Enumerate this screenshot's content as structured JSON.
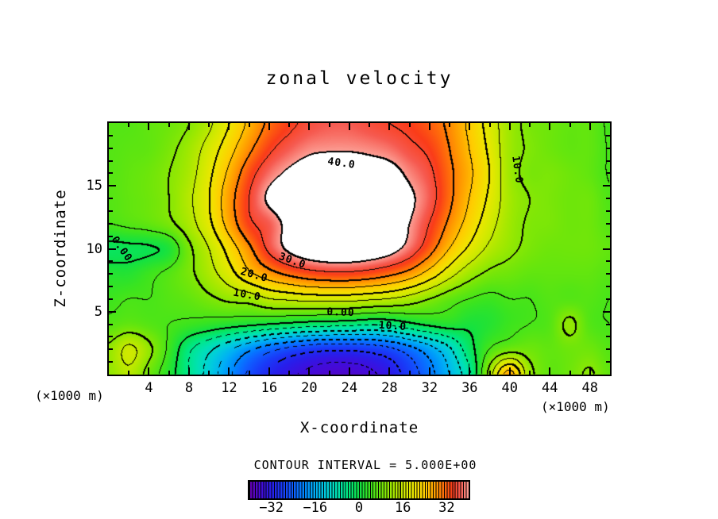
{
  "chart_data": {
    "type": "filled_contour",
    "title": "zonal velocity",
    "xlabel": "X-coordinate",
    "ylabel": "Z-coordinate",
    "unit_note_left": "(×1000 m)",
    "unit_note_right": "(×1000 m)",
    "contour_interval_label": "CONTOUR INTERVAL =  5.000E+00",
    "contour_interval": 5,
    "negative_contour_style": "dashed",
    "thick_contour_multiple": 10,
    "x_range": [
      0,
      50
    ],
    "z_range": [
      0,
      20
    ],
    "x_major_ticks": [
      4,
      8,
      12,
      16,
      20,
      24,
      28,
      32,
      36,
      40,
      44,
      48
    ],
    "x_minor_step": 2,
    "z_major_ticks": [
      5,
      10,
      15
    ],
    "z_minor_step": 1,
    "white_above": 40,
    "colorbar": {
      "range": [
        -40,
        40
      ],
      "tick_values": [
        -32,
        -16,
        0,
        16,
        32
      ],
      "tick_labels": [
        "−32",
        "−16",
        "0",
        "16",
        "32"
      ],
      "segments": 80
    },
    "colormap": [
      [
        -40,
        100,
        0,
        170
      ],
      [
        -36,
        70,
        10,
        215
      ],
      [
        -32,
        40,
        30,
        235
      ],
      [
        -28,
        25,
        60,
        248
      ],
      [
        -24,
        15,
        95,
        255
      ],
      [
        -20,
        0,
        135,
        255
      ],
      [
        -16,
        0,
        175,
        245
      ],
      [
        -12,
        0,
        205,
        220
      ],
      [
        -8,
        0,
        225,
        180
      ],
      [
        -4,
        0,
        232,
        130
      ],
      [
        0,
        15,
        225,
        70
      ],
      [
        4,
        60,
        228,
        30
      ],
      [
        8,
        110,
        230,
        10
      ],
      [
        12,
        160,
        232,
        0
      ],
      [
        16,
        205,
        233,
        0
      ],
      [
        20,
        238,
        232,
        0
      ],
      [
        24,
        255,
        205,
        0
      ],
      [
        28,
        255,
        155,
        0
      ],
      [
        31,
        255,
        110,
        10
      ],
      [
        34,
        250,
        60,
        25
      ],
      [
        37,
        246,
        90,
        80
      ],
      [
        40,
        252,
        160,
        150
      ]
    ],
    "grid": {
      "x_start": 0,
      "x_step": 2,
      "z_top": 20,
      "z_step": -2,
      "values": [
        [
          6,
          6,
          7,
          8,
          10,
          14,
          20,
          26,
          31,
          34,
          36,
          37,
          37,
          36,
          35,
          34,
          32,
          29,
          24,
          18,
          12,
          9,
          8,
          7,
          7,
          4.5
        ],
        [
          6,
          6.5,
          7,
          9,
          12,
          17,
          23,
          29,
          34,
          37,
          39,
          39.5,
          39.5,
          39,
          38,
          36,
          34,
          30,
          25,
          19,
          12,
          9.5,
          8,
          7,
          7,
          4.8
        ],
        [
          6,
          7,
          8,
          10,
          13,
          19,
          26,
          33,
          38,
          41,
          43,
          44,
          44,
          43,
          42,
          39,
          36,
          31,
          26,
          20,
          12,
          9,
          9,
          8,
          7,
          4.8
        ],
        [
          6,
          7,
          8,
          10,
          14,
          20,
          28,
          35,
          41,
          44,
          46,
          47,
          46,
          46,
          44,
          41,
          37,
          31,
          25,
          19,
          12.5,
          10,
          9,
          8,
          8,
          5.5
        ],
        [
          5,
          6,
          7,
          9,
          13,
          19,
          27,
          34,
          37,
          42,
          46,
          46,
          46,
          45,
          43,
          40,
          35,
          29,
          23,
          17,
          12,
          9.5,
          9,
          8,
          8,
          6
        ],
        [
          -1.5,
          -1,
          -0.5,
          1.5,
          9,
          15,
          22,
          29,
          36,
          41,
          44,
          45,
          45,
          44,
          42,
          38,
          32,
          25,
          19,
          14,
          11,
          9,
          8,
          8,
          8,
          7
        ],
        [
          2,
          2,
          4,
          6,
          9,
          13,
          18,
          24,
          28,
          31,
          33,
          34,
          34,
          33,
          31,
          28,
          23,
          17,
          12,
          9,
          8,
          7,
          7,
          7,
          7,
          6
        ],
        [
          4,
          5,
          5,
          6,
          7,
          9,
          11,
          12,
          15,
          16,
          17,
          17,
          17,
          16,
          15,
          13,
          10,
          7,
          5,
          4,
          5,
          5,
          6,
          6,
          6,
          5
        ],
        [
          6,
          7,
          6,
          5,
          4,
          3,
          2,
          1,
          0,
          -1,
          -2,
          -2.5,
          -3,
          -4,
          -3.5,
          -1,
          1,
          2,
          1,
          2,
          4,
          5,
          6,
          11,
          6,
          5
        ],
        [
          11,
          16,
          11,
          4,
          -4,
          -9,
          -14,
          -19,
          -23,
          -26,
          -28,
          -29,
          -29,
          -28,
          -26,
          -22,
          -17,
          -11,
          -2,
          5,
          8,
          8,
          7,
          8,
          8,
          6
        ],
        [
          11,
          14,
          8,
          2,
          -5,
          -12,
          -19,
          -26,
          -31,
          -34,
          -36,
          -37,
          -37,
          -36,
          -33,
          -28,
          -22,
          -15,
          -6,
          12,
          27,
          12,
          7,
          8,
          10.5,
          7
        ]
      ]
    },
    "contour_labels": [
      {
        "text": "40.0",
        "x": 23.2,
        "z": 16.8,
        "rot": 8
      },
      {
        "text": "10.0",
        "x": 40.7,
        "z": 16.3,
        "rot": 82
      },
      {
        "text": "0.00",
        "x": 1.3,
        "z": 10.0,
        "rot": 55
      },
      {
        "text": "30.0",
        "x": 18.3,
        "z": 9.0,
        "rot": 20
      },
      {
        "text": "20.0",
        "x": 14.5,
        "z": 7.9,
        "rot": 16
      },
      {
        "text": "10.0",
        "x": 13.8,
        "z": 6.3,
        "rot": 10
      },
      {
        "text": "0.00",
        "x": 23.1,
        "z": 4.9,
        "rot": 2
      },
      {
        "text": "−10.0",
        "x": 28.0,
        "z": 3.85,
        "rot": 4
      }
    ]
  }
}
